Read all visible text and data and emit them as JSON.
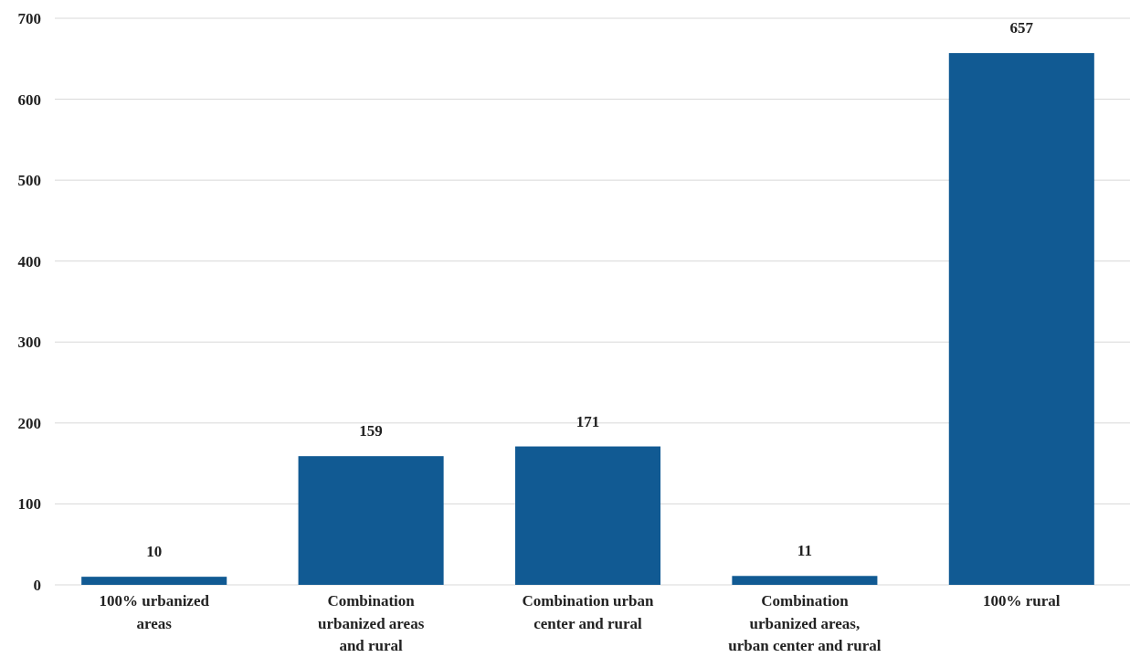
{
  "chart_data": {
    "type": "bar",
    "categories": [
      "100% urbanized\nareas",
      "Combination\nurbanized areas\nand rural",
      "Combination urban\ncenter and rural",
      "Combination\nurbanized areas,\nurban center and rural",
      "100% rural"
    ],
    "values": [
      10,
      159,
      171,
      11,
      657
    ],
    "color": "#115a93",
    "ylim": [
      0,
      700
    ],
    "yticks": [
      0,
      100,
      200,
      300,
      400,
      500,
      600,
      700
    ],
    "grid": "y",
    "data_labels": true
  }
}
